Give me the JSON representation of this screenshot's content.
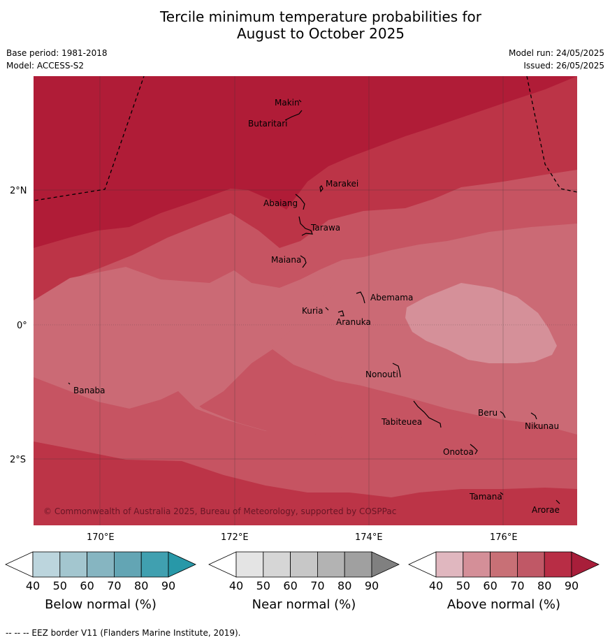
{
  "title_line1": "Tercile minimum temperature probabilities for",
  "title_line2": "August to October 2025",
  "meta": {
    "base_period": "Base period: 1981-2018",
    "model": "Model: ACCESS-S2",
    "model_run": "Model run: 24/05/2025",
    "issued": "Issued: 26/05/2025"
  },
  "axes": {
    "lon_labels": [
      "170°E",
      "172°E",
      "174°E",
      "176°E"
    ],
    "lat_labels": [
      "2°N",
      "0°",
      "2°S"
    ]
  },
  "places": [
    "Makin",
    "Butaritari",
    "Marakei",
    "Abaiang",
    "Tarawa",
    "Maiana",
    "Abemama",
    "Kuria",
    "Aranuka",
    "Nonouti",
    "Banaba",
    "Beru",
    "Nikunau",
    "Tabiteuea",
    "Onotoa",
    "Tamana",
    "Arorae"
  ],
  "copyright": "© Commonwealth of Australia 2025, Bureau of Meteorology, supported by COSPPac",
  "colorbars": [
    {
      "label": "Below normal (%)",
      "ticks": [
        "40",
        "50",
        "60",
        "70",
        "80",
        "90"
      ],
      "colors": [
        "#ffffff",
        "#bcd5dd",
        "#a3c6cf",
        "#86b5c1",
        "#63a5b4",
        "#40a0b0",
        "#2898a8"
      ]
    },
    {
      "label": "Near normal (%)",
      "ticks": [
        "40",
        "50",
        "60",
        "70",
        "80",
        "90"
      ],
      "colors": [
        "#ffffff",
        "#e4e4e4",
        "#d6d6d6",
        "#c7c7c7",
        "#b3b3b3",
        "#a0a0a0",
        "#808080"
      ]
    },
    {
      "label": "Above normal (%)",
      "ticks": [
        "40",
        "50",
        "60",
        "70",
        "80",
        "90"
      ],
      "colors": [
        "#ffffff",
        "#e0b7bf",
        "#d48f98",
        "#c87076",
        "#c05866",
        "#b82d45",
        "#a81e3a"
      ]
    }
  ],
  "map_colors": {
    "band_90": "#b01c37",
    "band_80": "#bc3447",
    "band_70": "#c65462",
    "band_60": "#cb6a75",
    "band_50": "#d59099"
  },
  "footnote": "--  --  -- EEZ border V11 (Flanders Marine Institute, 2019)."
}
